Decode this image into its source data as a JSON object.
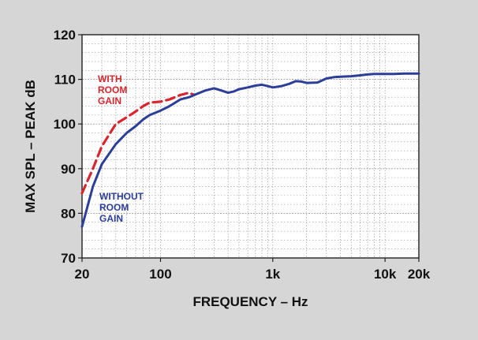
{
  "chart_data": {
    "type": "line",
    "title": "",
    "xlabel": "FREQUENCY – Hz",
    "ylabel": "MAX SPL – PEAK dB",
    "x_scale": "log",
    "xlim": [
      20,
      20000
    ],
    "ylim": [
      70,
      120
    ],
    "x_ticks": [
      {
        "value": 20,
        "label": "20"
      },
      {
        "value": 100,
        "label": "100"
      },
      {
        "value": 1000,
        "label": "1k"
      },
      {
        "value": 10000,
        "label": "10k"
      },
      {
        "value": 20000,
        "label": "20k"
      }
    ],
    "y_ticks": [
      70,
      80,
      90,
      100,
      110,
      120
    ],
    "grid": true,
    "series": [
      {
        "name": "WITH ROOM GAIN",
        "color": "#d8262f",
        "dash": "dashed",
        "label_lines": [
          "WITH",
          "ROOM",
          "GAIN"
        ],
        "x": [
          20,
          25,
          30,
          40,
          50,
          60,
          70,
          80,
          100,
          120,
          150,
          180,
          200
        ],
        "y": [
          84.5,
          90,
          95,
          100,
          101.5,
          102.8,
          104,
          104.8,
          105,
          105.5,
          106.5,
          107,
          106.5
        ]
      },
      {
        "name": "WITHOUT ROOM GAIN",
        "color": "#2c3e98",
        "dash": "solid",
        "label_lines": [
          "WITHOUT",
          "ROOM",
          "GAIN"
        ],
        "x": [
          20,
          25,
          30,
          40,
          50,
          60,
          70,
          80,
          100,
          120,
          150,
          180,
          200,
          250,
          300,
          350,
          400,
          450,
          500,
          600,
          700,
          800,
          900,
          1000,
          1200,
          1400,
          1600,
          1800,
          2000,
          2500,
          3000,
          3500,
          4000,
          5000,
          6000,
          7000,
          8000,
          9000,
          10000,
          12000,
          15000,
          20000
        ],
        "y": [
          77,
          86,
          91,
          95.5,
          98,
          99.5,
          101,
          102,
          103,
          104,
          105.5,
          106,
          106.5,
          107.5,
          108,
          107.5,
          107,
          107.3,
          107.8,
          108.2,
          108.6,
          108.8,
          108.5,
          108.2,
          108.5,
          109,
          109.6,
          109.5,
          109.2,
          109.3,
          110.2,
          110.5,
          110.6,
          110.7,
          110.9,
          111.1,
          111.2,
          111.2,
          111.2,
          111.2,
          111.3,
          111.3
        ]
      }
    ]
  },
  "colors": {
    "background": "#d6d6d6",
    "plot_background": "#ffffff",
    "axis": "#222222",
    "grid": "#9a9a9a"
  }
}
